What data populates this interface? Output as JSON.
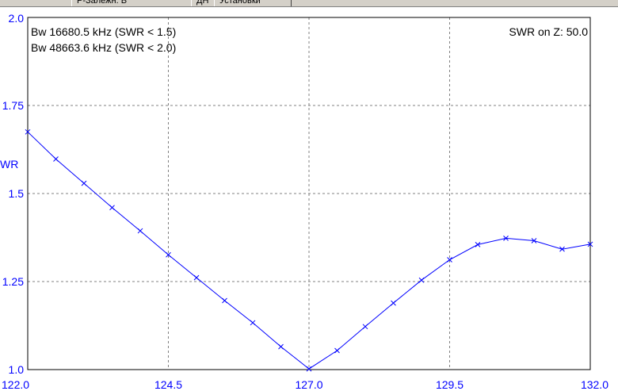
{
  "tabs": [
    {
      "label": "Р-Залежн. В"
    },
    {
      "label": "ДН"
    },
    {
      "label": "Установки"
    }
  ],
  "info": {
    "bw1": "Bw 16680.5 kHz (SWR < 1.5)",
    "bw2": "Bw 48663.6 kHz (SWR < 2.0)",
    "z": "SWR on Z: 50.0"
  },
  "chart_data": {
    "type": "line",
    "ylabel": "WR",
    "xlim": [
      122.0,
      132.0
    ],
    "ylim": [
      1.0,
      2.0
    ],
    "x_ticks": [
      "122.0",
      "124.5",
      "127.0",
      "129.5",
      "132.0"
    ],
    "y_ticks": [
      "1.0",
      "1.25",
      "1.5",
      "1.75",
      "2.0"
    ],
    "grid": true,
    "line_color": "#0000ff",
    "series": [
      {
        "points": [
          {
            "x": 122.0,
            "y": 1.675
          },
          {
            "x": 122.5,
            "y": 1.598
          },
          {
            "x": 123.0,
            "y": 1.529
          },
          {
            "x": 123.5,
            "y": 1.46
          },
          {
            "x": 124.0,
            "y": 1.394
          },
          {
            "x": 124.5,
            "y": 1.326
          },
          {
            "x": 125.0,
            "y": 1.261
          },
          {
            "x": 125.5,
            "y": 1.196
          },
          {
            "x": 126.0,
            "y": 1.133
          },
          {
            "x": 126.5,
            "y": 1.065
          },
          {
            "x": 127.0,
            "y": 1.002
          },
          {
            "x": 127.5,
            "y": 1.054
          },
          {
            "x": 128.0,
            "y": 1.122
          },
          {
            "x": 128.5,
            "y": 1.189
          },
          {
            "x": 129.0,
            "y": 1.254
          },
          {
            "x": 129.5,
            "y": 1.312
          },
          {
            "x": 130.0,
            "y": 1.355
          },
          {
            "x": 130.5,
            "y": 1.373
          },
          {
            "x": 131.0,
            "y": 1.366
          },
          {
            "x": 131.5,
            "y": 1.342
          },
          {
            "x": 132.0,
            "y": 1.356
          }
        ]
      }
    ]
  }
}
